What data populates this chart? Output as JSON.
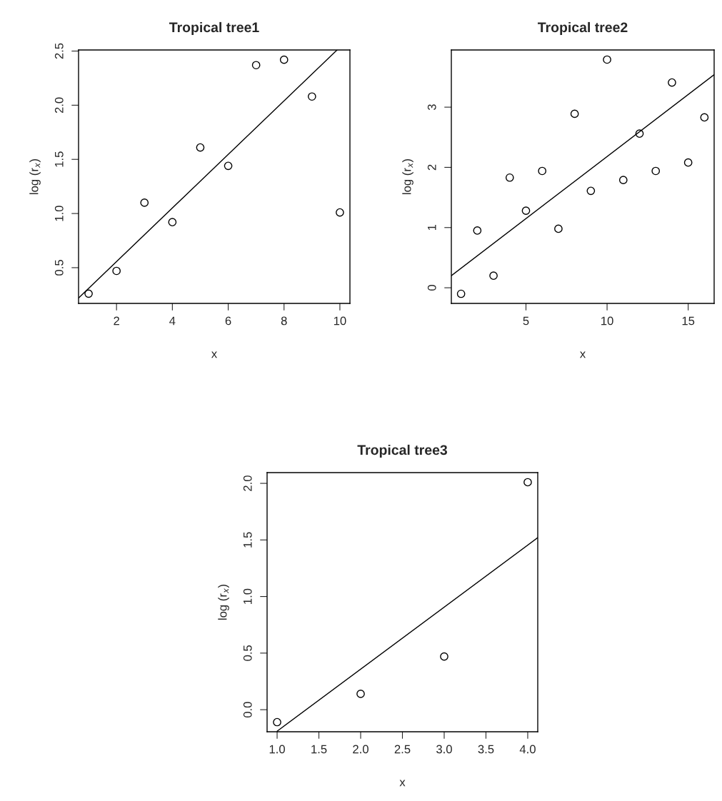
{
  "chart_data": [
    {
      "type": "scatter",
      "title": "Tropical tree1",
      "xlabel": "x",
      "ylabel": "log (r$_{x}$)",
      "marker": "circle",
      "grid": false,
      "xlim": [
        0.64,
        10.36
      ],
      "ylim": [
        0.17,
        2.51
      ],
      "xticks": [
        2,
        4,
        6,
        8,
        10
      ],
      "yticks": [
        {
          "value": 0.5,
          "label": "0.5"
        },
        {
          "value": 1.0,
          "label": "1.0"
        },
        {
          "value": 1.5,
          "label": "1.5"
        },
        {
          "value": 2.0,
          "label": "2.0"
        },
        {
          "value": 2.5,
          "label": "2.5"
        }
      ],
      "series": [
        {
          "color": "#000000",
          "x": [
            1,
            2,
            3,
            4,
            5,
            6,
            7,
            8,
            9,
            10
          ],
          "values": [
            0.26,
            0.47,
            1.1,
            0.92,
            1.61,
            1.44,
            2.37,
            2.42,
            2.08,
            1.01
          ]
        },
        {
          "type": "line",
          "color": "#000000",
          "marker": "none",
          "x": [
            0.64,
            9.9
          ],
          "values": [
            0.22,
            2.51
          ]
        }
      ]
    },
    {
      "type": "scatter",
      "title": "Tropical tree2",
      "xlabel": "x",
      "ylabel": "log (r$_{x}$)",
      "marker": "circle",
      "grid": false,
      "xlim": [
        0.4,
        16.6
      ],
      "ylim": [
        -0.26,
        3.95
      ],
      "xticks": [
        5,
        10,
        15
      ],
      "yticks": [
        0,
        1,
        2,
        3
      ],
      "series": [
        {
          "color": "#000000",
          "x": [
            1,
            2,
            3,
            4,
            5,
            6,
            7,
            8,
            9,
            10,
            11,
            12,
            13,
            14,
            15,
            16
          ],
          "values": [
            -0.1,
            0.95,
            0.2,
            1.83,
            1.28,
            1.94,
            0.98,
            2.89,
            1.61,
            3.79,
            1.79,
            2.56,
            1.94,
            3.41,
            2.08,
            2.83
          ]
        },
        {
          "type": "line",
          "color": "#000000",
          "marker": "none",
          "x": [
            0.4,
            16.6
          ],
          "values": [
            0.2,
            3.54
          ]
        }
      ]
    },
    {
      "type": "scatter",
      "title": "Tropical tree3",
      "xlabel": "x",
      "ylabel": "log (r$_{x}$)",
      "marker": "circle",
      "grid": false,
      "xlim": [
        0.88,
        4.12
      ],
      "ylim": [
        -0.195,
        2.095
      ],
      "xticks": [
        {
          "value": 1.0,
          "label": "1.0"
        },
        {
          "value": 1.5,
          "label": "1.5"
        },
        {
          "value": 2.0,
          "label": "2.0"
        },
        {
          "value": 2.5,
          "label": "2.5"
        },
        {
          "value": 3.0,
          "label": "3.0"
        },
        {
          "value": 3.5,
          "label": "3.5"
        },
        {
          "value": 4.0,
          "label": "4.0"
        }
      ],
      "yticks": [
        {
          "value": 0.0,
          "label": "0.0"
        },
        {
          "value": 0.5,
          "label": "0.5"
        },
        {
          "value": 1.0,
          "label": "1.0"
        },
        {
          "value": 1.5,
          "label": "1.5"
        },
        {
          "value": 2.0,
          "label": "2.0"
        }
      ],
      "series": [
        {
          "color": "#000000",
          "x": [
            1,
            2,
            3,
            4
          ],
          "values": [
            -0.11,
            0.14,
            0.47,
            2.01
          ]
        },
        {
          "type": "line",
          "color": "#000000",
          "marker": "none",
          "x": [
            1.0,
            4.12
          ],
          "values": [
            -0.19,
            1.52
          ]
        }
      ]
    }
  ]
}
